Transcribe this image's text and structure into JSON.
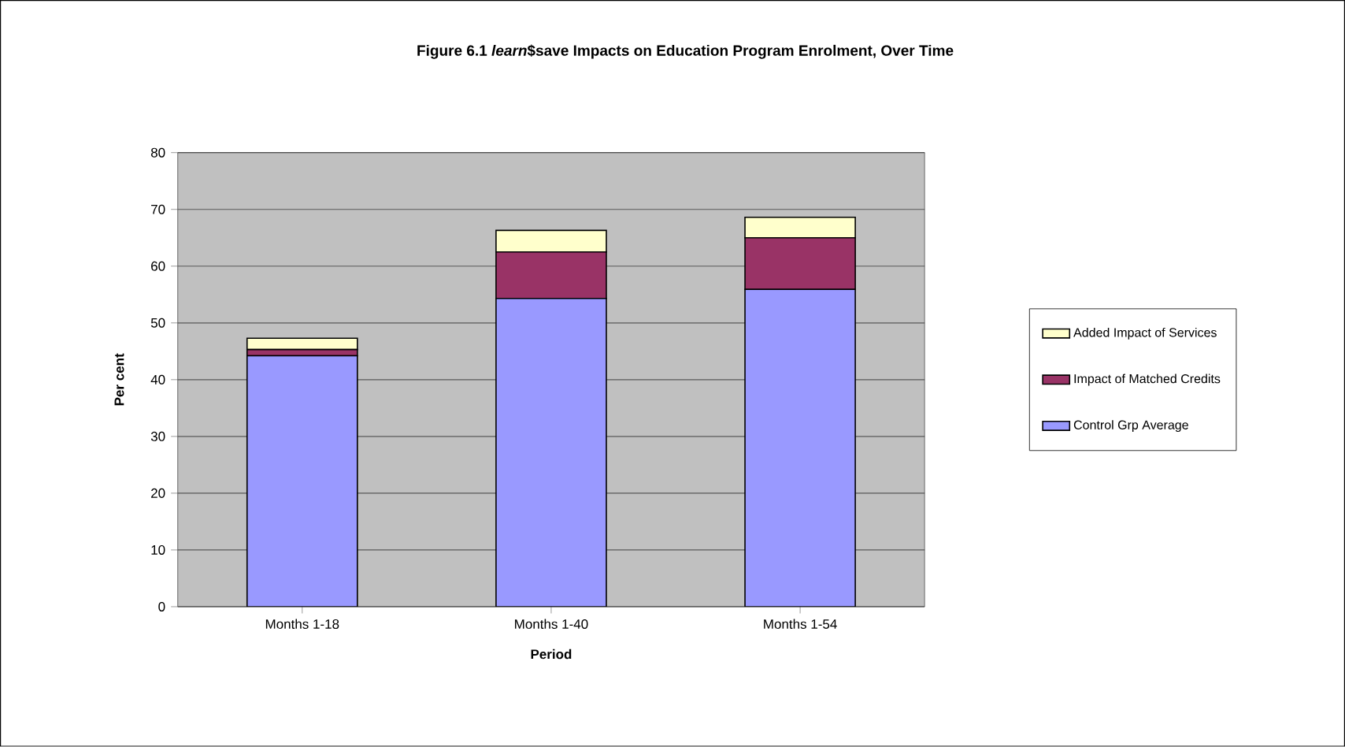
{
  "chart_data": {
    "type": "bar",
    "stacked": true,
    "title": "Figure 6.1 *learn*$save Impacts on Education Program Enrolment, Over Time",
    "xlabel": "Period",
    "ylabel": "Per cent",
    "categories": [
      "Months 1-18",
      "Months 1-40",
      "Months 1-54"
    ],
    "series": [
      {
        "name": "Control Grp Average",
        "color": "#9999ff",
        "values": [
          44.2,
          54.3,
          55.9
        ]
      },
      {
        "name": "Impact of Matched Credits",
        "color": "#993366",
        "values": [
          1.1,
          8.2,
          9.1
        ]
      },
      {
        "name": "Added Impact of Services",
        "color": "#ffffcc",
        "values": [
          2.0,
          3.8,
          3.6
        ]
      }
    ],
    "ylim": [
      0,
      80
    ],
    "yticks": [
      0,
      10,
      20,
      30,
      40,
      50,
      60,
      70,
      80
    ],
    "grid": "y",
    "legend": "right"
  }
}
